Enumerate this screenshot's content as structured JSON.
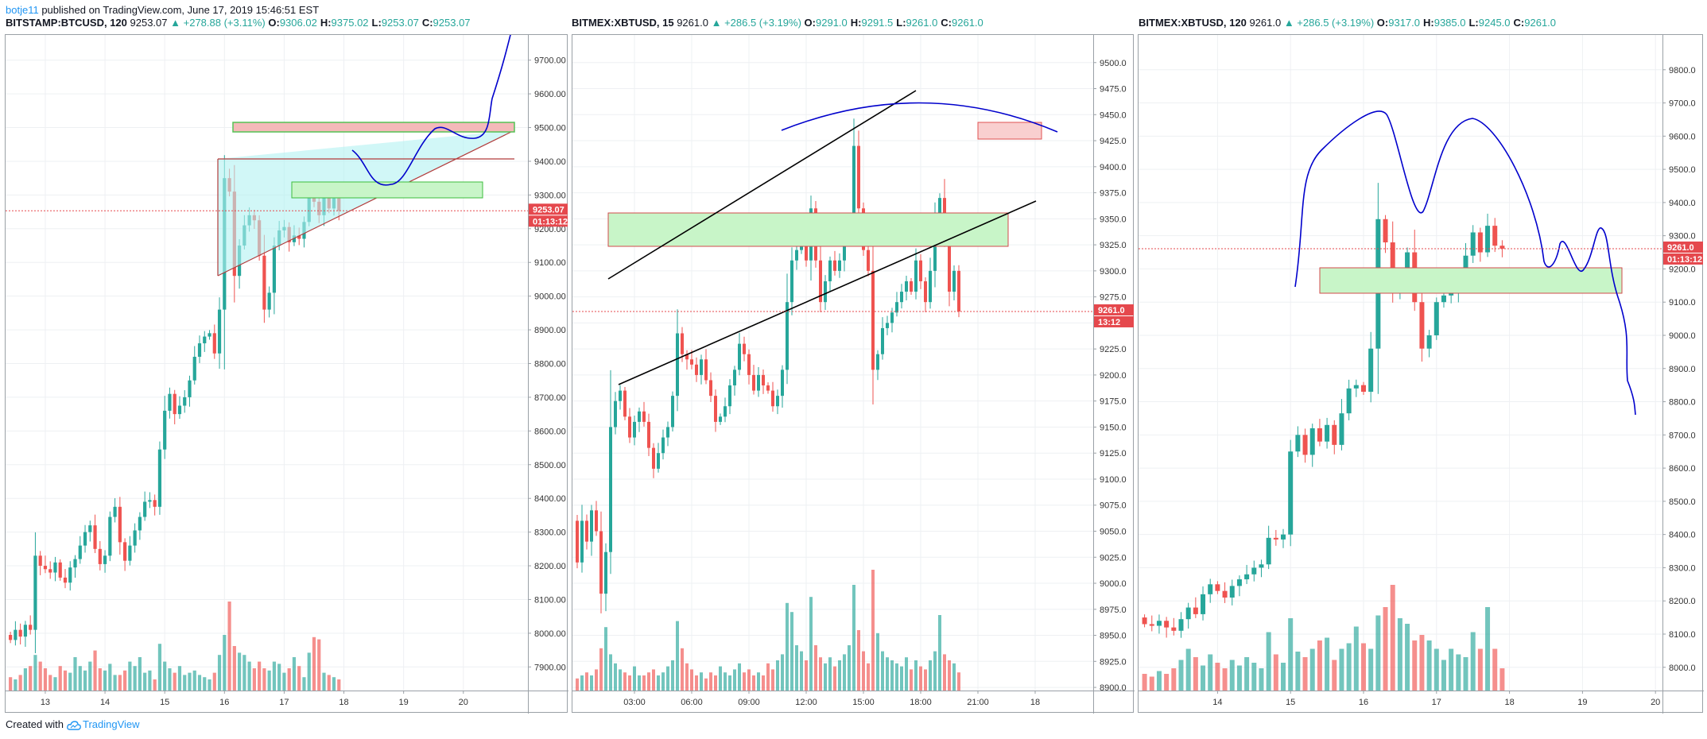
{
  "header": {
    "user": "botje11",
    "published_text": "published on TradingView.com, June 17, 2019 15:46:51 EST"
  },
  "footer": {
    "created_with": "Created with",
    "brand": "TradingView"
  },
  "colors": {
    "up": "#26a69a",
    "down": "#ef5350",
    "drawing": "#0000cc",
    "grid": "#eef0f3",
    "price_tag": "#e5484d"
  },
  "chart_data": [
    {
      "type": "candlestick",
      "symbol": "BITSTAMP:BTCUSD, 120",
      "last": "9253.07",
      "change": "▲ +278.88 (+3.11%)",
      "ohlc": [
        [
          "O:",
          "9306.02"
        ],
        [
          "H:",
          "9375.02"
        ],
        [
          "L:",
          "9253.07"
        ],
        [
          "C:",
          "9253.07"
        ]
      ],
      "ylim": [
        7830,
        9770
      ],
      "y_ticks": [
        7900,
        8000,
        8100,
        8200,
        8300,
        8400,
        8500,
        8600,
        8700,
        8800,
        8900,
        9000,
        9100,
        9200,
        9300,
        9400,
        9500,
        9600,
        9700
      ],
      "y_decimals": 2,
      "x_ticks": [
        [
          "13",
          7
        ],
        [
          "14",
          19
        ],
        [
          "15",
          31
        ],
        [
          "16",
          43
        ],
        [
          "17",
          55
        ],
        [
          "18",
          67
        ],
        [
          "19",
          79
        ],
        [
          "20",
          91
        ]
      ],
      "x_slots": 106,
      "start_price": 7995,
      "closes": [
        7980,
        8010,
        7990,
        8025,
        8010,
        8230,
        8200,
        8190,
        8180,
        8210,
        8165,
        8150,
        8195,
        8220,
        8260,
        8300,
        8320,
        8250,
        8205,
        8230,
        8345,
        8375,
        8270,
        8215,
        8260,
        8305,
        8345,
        8390,
        8395,
        8375,
        8545,
        8660,
        8710,
        8650,
        8675,
        8700,
        8750,
        8820,
        8860,
        8880,
        8890,
        8830,
        8960,
        9350,
        9310,
        9060,
        9150,
        9210,
        9240,
        9225,
        9120,
        8960,
        9010,
        9150,
        9195,
        9205,
        9160,
        9180,
        9170,
        9220,
        9310,
        9280,
        9240,
        9310,
        9260,
        9290,
        9253
      ],
      "volumes": [
        0.12,
        0.1,
        0.14,
        0.2,
        0.22,
        0.32,
        0.26,
        0.2,
        0.14,
        0.12,
        0.22,
        0.18,
        0.16,
        0.3,
        0.22,
        0.18,
        0.26,
        0.36,
        0.2,
        0.18,
        0.24,
        0.14,
        0.14,
        0.18,
        0.26,
        0.22,
        0.3,
        0.16,
        0.18,
        0.1,
        0.42,
        0.26,
        0.2,
        0.16,
        0.22,
        0.14,
        0.16,
        0.18,
        0.14,
        0.12,
        0.1,
        0.16,
        0.32,
        0.5,
        0.8,
        0.4,
        0.34,
        0.32,
        0.26,
        0.2,
        0.26,
        0.2,
        0.18,
        0.26,
        0.24,
        0.16,
        0.2,
        0.3,
        0.22,
        0.12,
        0.34,
        0.48,
        0.46,
        0.16,
        0.14,
        0.12,
        0.1
      ],
      "price_tag": "9253.07",
      "time_tag": "01:13:12",
      "current_price": 9253.07
    },
    {
      "type": "candlestick",
      "symbol": "BITMEX:XBTUSD, 15",
      "last": "9261.0",
      "change": "▲ +286.5 (+3.19%)",
      "ohlc": [
        [
          "O:",
          "9291.0"
        ],
        [
          "H:",
          "9291.5"
        ],
        [
          "L:",
          "9261.0"
        ],
        [
          "C:",
          "9261.0"
        ]
      ],
      "ylim": [
        8897,
        9525
      ],
      "y_ticks": [
        8900,
        8925,
        8950,
        8975,
        9000,
        9025,
        9050,
        9075,
        9100,
        9125,
        9150,
        9175,
        9200,
        9225,
        9250,
        9275,
        9300,
        9325,
        9350,
        9375,
        9400,
        9425,
        9450,
        9475,
        9500
      ],
      "y_decimals": 1,
      "x_ticks": [
        [
          "03:00",
          12
        ],
        [
          "06:00",
          24
        ],
        [
          "09:00",
          36
        ],
        [
          "12:00",
          48
        ],
        [
          "15:00",
          60
        ],
        [
          "18:00",
          72
        ],
        [
          "21:00",
          84
        ],
        [
          "18",
          96
        ]
      ],
      "x_slots": 106,
      "start_price": 9060,
      "closes": [
        9020,
        9060,
        9040,
        9070,
        9050,
        8990,
        9030,
        9150,
        9175,
        9185,
        9160,
        9140,
        9155,
        9165,
        9155,
        9130,
        9110,
        9125,
        9140,
        9150,
        9180,
        9240,
        9220,
        9215,
        9210,
        9200,
        9215,
        9195,
        9180,
        9155,
        9160,
        9170,
        9190,
        9205,
        9230,
        9220,
        9200,
        9185,
        9200,
        9190,
        9185,
        9170,
        9180,
        9205,
        9270,
        9310,
        9320,
        9325,
        9310,
        9360,
        9310,
        9270,
        9290,
        9310,
        9300,
        9310,
        9335,
        9345,
        9420,
        9360,
        9320,
        9300,
        9205,
        9220,
        9245,
        9250,
        9260,
        9270,
        9280,
        9290,
        9280,
        9310,
        9290,
        9270,
        9300,
        9350,
        9370,
        9330,
        9280,
        9300,
        9261
      ],
      "volumes": [
        0.08,
        0.1,
        0.12,
        0.1,
        0.14,
        0.28,
        0.42,
        0.24,
        0.18,
        0.14,
        0.12,
        0.1,
        0.16,
        0.1,
        0.1,
        0.12,
        0.14,
        0.1,
        0.12,
        0.16,
        0.2,
        0.46,
        0.28,
        0.18,
        0.14,
        0.1,
        0.12,
        0.08,
        0.12,
        0.1,
        0.16,
        0.12,
        0.1,
        0.14,
        0.18,
        0.12,
        0.14,
        0.1,
        0.12,
        0.1,
        0.18,
        0.14,
        0.2,
        0.24,
        0.58,
        0.52,
        0.3,
        0.26,
        0.2,
        0.62,
        0.3,
        0.22,
        0.18,
        0.22,
        0.16,
        0.2,
        0.24,
        0.3,
        0.7,
        0.4,
        0.26,
        0.18,
        0.8,
        0.38,
        0.26,
        0.22,
        0.2,
        0.18,
        0.16,
        0.22,
        0.14,
        0.2,
        0.16,
        0.14,
        0.2,
        0.26,
        0.5,
        0.24,
        0.2,
        0.18,
        0.12
      ],
      "price_tag": "9261.0",
      "time_tag": "13:12",
      "current_price": 9261.0
    },
    {
      "type": "candlestick",
      "symbol": "BITMEX:XBTUSD, 120",
      "last": "9261.0",
      "change": "▲ +286.5 (+3.19%)",
      "ohlc": [
        [
          "O:",
          "9317.0"
        ],
        [
          "H:",
          "9385.0"
        ],
        [
          "L:",
          "9245.0"
        ],
        [
          "C:",
          "9261.0"
        ]
      ],
      "ylim": [
        7930,
        9900
      ],
      "y_ticks": [
        8000,
        8100,
        8200,
        8300,
        8400,
        8500,
        8600,
        8700,
        8800,
        8900,
        9000,
        9100,
        9200,
        9300,
        9400,
        9500,
        9600,
        9700,
        9800
      ],
      "y_decimals": 1,
      "x_ticks": [
        [
          "14",
          10
        ],
        [
          "15",
          20
        ],
        [
          "16",
          30
        ],
        [
          "17",
          40
        ],
        [
          "18",
          50
        ],
        [
          "19",
          60
        ],
        [
          "20",
          70
        ]
      ],
      "x_slots": 72,
      "start_price": 8150,
      "closes": [
        8130,
        8125,
        8140,
        8120,
        8110,
        8145,
        8180,
        8160,
        8220,
        8250,
        8230,
        8210,
        8245,
        8265,
        8280,
        8300,
        8310,
        8390,
        8385,
        8400,
        8650,
        8700,
        8640,
        8720,
        8680,
        8730,
        8670,
        8765,
        8840,
        8850,
        8830,
        8960,
        9350,
        9280,
        9130,
        9180,
        9250,
        9100,
        8960,
        9000,
        9100,
        9120,
        9130,
        9150,
        9240,
        9310,
        9250,
        9330,
        9270,
        9261
      ],
      "volumes": [
        0.12,
        0.1,
        0.14,
        0.12,
        0.16,
        0.22,
        0.3,
        0.24,
        0.18,
        0.26,
        0.2,
        0.16,
        0.22,
        0.18,
        0.24,
        0.2,
        0.16,
        0.42,
        0.26,
        0.2,
        0.52,
        0.28,
        0.24,
        0.3,
        0.36,
        0.38,
        0.22,
        0.3,
        0.34,
        0.46,
        0.34,
        0.3,
        0.54,
        0.6,
        0.76,
        0.52,
        0.48,
        0.36,
        0.4,
        0.36,
        0.3,
        0.22,
        0.3,
        0.26,
        0.24,
        0.42,
        0.3,
        0.6,
        0.3,
        0.16
      ],
      "price_tag": "9261.0",
      "time_tag": "01:13:12",
      "current_price": 9261.0
    }
  ]
}
